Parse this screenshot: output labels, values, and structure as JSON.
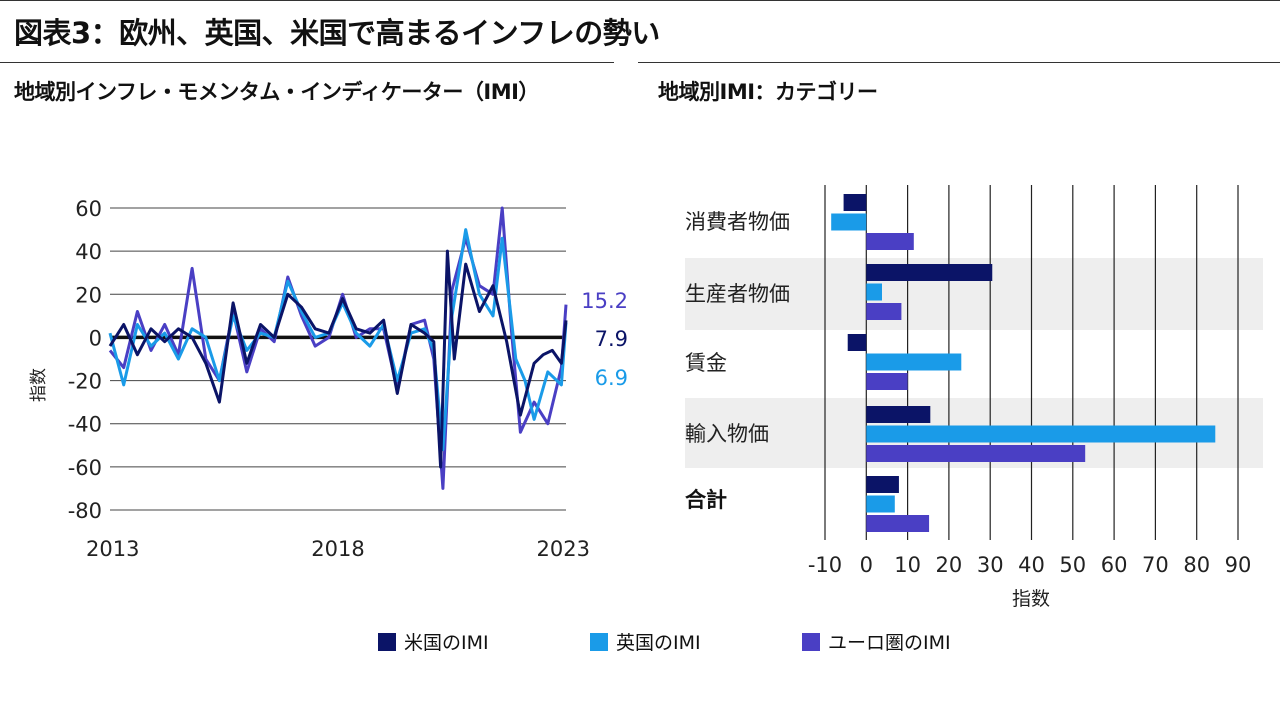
{
  "title": "図表3：欧州、英国、米国で高まるインフレの勢い",
  "subtitle_left": "地域別インフレ・モメンタム・インディケーター（IMI）",
  "subtitle_right": "地域別IMI：カテゴリー",
  "colors": {
    "us": "#0b1467",
    "uk": "#1a9be8",
    "eu": "#4a3fc4",
    "band": "#eeeeee",
    "grid": "#222222"
  },
  "legend": [
    {
      "key": "us",
      "label": "米国のIMI"
    },
    {
      "key": "uk",
      "label": "英国のIMI"
    },
    {
      "key": "eu",
      "label": "ユーロ圏のIMI"
    }
  ],
  "chart_data": [
    {
      "type": "line",
      "title": "地域別インフレ・モメンタム・インディケーター（IMI）",
      "ylabel": "指数",
      "xlim": [
        2013,
        2023
      ],
      "ylim": [
        -80,
        60
      ],
      "yticks": [
        60,
        40,
        20,
        0,
        -20,
        -40,
        -60,
        -80
      ],
      "xticks": [
        "2013",
        "2018",
        "2023"
      ],
      "end_labels": [
        "15.2",
        "7.9",
        "6.9"
      ],
      "series": [
        {
          "name": "米国のIMI",
          "key": "us",
          "x": [
            2013,
            2013.3,
            2013.6,
            2013.9,
            2014.2,
            2014.5,
            2014.8,
            2015.1,
            2015.4,
            2015.7,
            2016.0,
            2016.3,
            2016.6,
            2016.9,
            2017.2,
            2017.5,
            2017.8,
            2018.1,
            2018.4,
            2018.7,
            2019.0,
            2019.3,
            2019.6,
            2019.9,
            2020.1,
            2020.25,
            2020.4,
            2020.55,
            2020.8,
            2021.1,
            2021.4,
            2021.7,
            2022.0,
            2022.3,
            2022.5,
            2022.7,
            2022.9,
            2023.0
          ],
          "y": [
            -4,
            6,
            -8,
            4,
            -2,
            4,
            0,
            -12,
            -30,
            16,
            -12,
            6,
            0,
            20,
            14,
            4,
            2,
            18,
            4,
            2,
            8,
            -26,
            6,
            2,
            -2,
            -60,
            40,
            -10,
            34,
            12,
            24,
            -2,
            -36,
            -12,
            -8,
            -6,
            -12,
            7.9
          ]
        },
        {
          "name": "英国のIMI",
          "key": "uk",
          "x": [
            2013,
            2013.3,
            2013.6,
            2013.9,
            2014.2,
            2014.5,
            2014.8,
            2015.1,
            2015.4,
            2015.7,
            2016.0,
            2016.3,
            2016.6,
            2016.9,
            2017.2,
            2017.5,
            2017.8,
            2018.1,
            2018.4,
            2018.7,
            2019.0,
            2019.3,
            2019.6,
            2019.9,
            2020.1,
            2020.3,
            2020.5,
            2020.8,
            2021.1,
            2021.4,
            2021.6,
            2021.9,
            2022.1,
            2022.3,
            2022.6,
            2022.9,
            2023.0
          ],
          "y": [
            2,
            -22,
            6,
            -4,
            2,
            -10,
            4,
            0,
            -20,
            10,
            -6,
            2,
            0,
            26,
            12,
            0,
            2,
            16,
            2,
            -4,
            6,
            -20,
            2,
            4,
            -6,
            -52,
            10,
            50,
            20,
            10,
            46,
            -10,
            -20,
            -38,
            -16,
            -22,
            6.9
          ]
        },
        {
          "name": "ユーロ圏のIMI",
          "key": "eu",
          "x": [
            2013,
            2013.3,
            2013.6,
            2013.9,
            2014.2,
            2014.5,
            2014.8,
            2015.1,
            2015.4,
            2015.7,
            2016.0,
            2016.3,
            2016.6,
            2016.9,
            2017.2,
            2017.5,
            2017.8,
            2018.1,
            2018.4,
            2018.7,
            2019.0,
            2019.3,
            2019.6,
            2019.9,
            2020.1,
            2020.3,
            2020.5,
            2020.8,
            2021.1,
            2021.4,
            2021.6,
            2021.8,
            2022.0,
            2022.3,
            2022.6,
            2022.9,
            2023.0
          ],
          "y": [
            -6,
            -14,
            12,
            -6,
            6,
            -8,
            32,
            -10,
            -20,
            12,
            -16,
            4,
            -2,
            28,
            10,
            -4,
            0,
            20,
            0,
            4,
            4,
            -24,
            6,
            8,
            -10,
            -70,
            22,
            46,
            24,
            20,
            60,
            4,
            -44,
            -30,
            -40,
            -14,
            15.2
          ]
        }
      ]
    },
    {
      "type": "bar",
      "orientation": "horizontal",
      "title": "地域別IMI：カテゴリー",
      "xlabel": "指数",
      "xlim": [
        -10,
        90
      ],
      "xticks": [
        "-10",
        "0",
        "10",
        "20",
        "30",
        "40",
        "50",
        "60",
        "70",
        "80",
        "90"
      ],
      "categories": [
        "消費者物価",
        "生産者物価",
        "賃金",
        "輸入物価",
        "合計"
      ],
      "series": [
        {
          "name": "米国のIMI",
          "key": "us",
          "values": [
            -5.5,
            30.5,
            -4.5,
            15.5,
            7.9
          ]
        },
        {
          "name": "英国のIMI",
          "key": "uk",
          "values": [
            -8.5,
            3.8,
            23.0,
            84.5,
            6.9
          ]
        },
        {
          "name": "ユーロ圏のIMI",
          "key": "eu",
          "values": [
            11.5,
            8.5,
            10.0,
            53.0,
            15.2
          ]
        }
      ]
    }
  ]
}
